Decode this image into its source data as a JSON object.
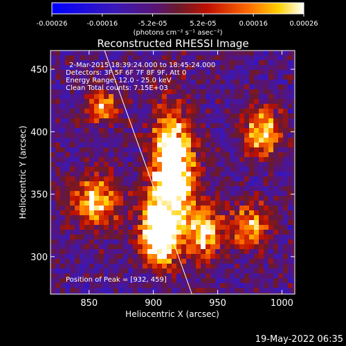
{
  "chart_data": {
    "type": "heatmap",
    "title": "Reconstructed RHESSI Image",
    "xlabel": "Heliocentric X (arcsec)",
    "ylabel": "Heliocentric Y (arcsec)",
    "xlim": [
      820,
      1010
    ],
    "ylim": [
      270,
      465
    ],
    "x_ticks": [
      850,
      900,
      950,
      1000
    ],
    "y_ticks": [
      300,
      350,
      400,
      450
    ],
    "colorbar": {
      "ticks": [
        "-0.00026",
        "-0.00016",
        "-5.2e-05",
        "5.2e-05",
        "0.00016",
        "0.00026"
      ],
      "units_label": "(photons cm⁻² s⁻¹ asec⁻²)",
      "range": [
        -0.00026,
        0.00026
      ]
    },
    "info_lines": [
      "2-Mar-2015 18:39:24.000 to 18:45:24.000",
      "Detectors: 3F 5F 6F 7F 8F 9F, Att 0",
      "Energy Range: 12.0 - 25.0 keV",
      "Clean     Total counts: 7.15E+03"
    ],
    "peak_text": "Position of Peak = [932, 459]",
    "limb_line": [
      [
        862,
        465
      ],
      [
        930,
        270
      ]
    ],
    "sources": [
      {
        "x": 915,
        "y": 370,
        "sx": 11,
        "sy": 30,
        "amp": 1.0
      },
      {
        "x": 905,
        "y": 318,
        "sx": 10,
        "sy": 16,
        "amp": 0.95
      },
      {
        "x": 940,
        "y": 320,
        "sx": 9,
        "sy": 16,
        "amp": 0.6
      },
      {
        "x": 975,
        "y": 325,
        "sx": 11,
        "sy": 12,
        "apmp": 0
      },
      {
        "x": 855,
        "y": 345,
        "sx": 14,
        "sy": 14,
        "amp": 0.55
      },
      {
        "x": 985,
        "y": 400,
        "sx": 10,
        "sy": 14,
        "amp": 0.55
      },
      {
        "x": 860,
        "y": 420,
        "sx": 9,
        "sy": 9,
        "amp": 0.45
      }
    ],
    "timestamp": "19-May-2022 06:35"
  }
}
